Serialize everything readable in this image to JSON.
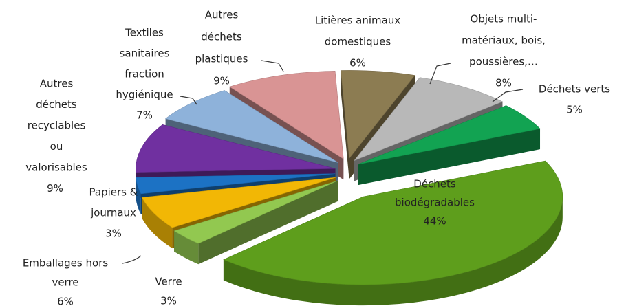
{
  "chart_data": {
    "type": "pie3d",
    "categories": [
      [
        "Déchets",
        "biodégradables"
      ],
      [
        "Verre"
      ],
      [
        "Emballages hors",
        "verre"
      ],
      [
        "Papiers &",
        "journaux"
      ],
      [
        "Autres",
        "déchets",
        "recyclables",
        "ou",
        "valorisables"
      ],
      [
        "Textiles",
        "sanitaires",
        "fraction",
        "hygiénique"
      ],
      [
        "Autres",
        "déchets",
        "plastiques"
      ],
      [
        "Litières animaux",
        "domestiques"
      ],
      [
        "Objets multi-",
        "matériaux, bois,",
        "poussières,…"
      ],
      [
        "Déchets verts"
      ]
    ],
    "values": [
      44,
      3,
      6,
      3,
      9,
      7,
      9,
      6,
      8,
      5
    ],
    "value_labels": [
      "44%",
      "3%",
      "6%",
      "3%",
      "9%",
      "7%",
      "9%",
      "6%",
      "8%",
      "5%"
    ],
    "colors": [
      "#5e9e1c",
      "#92c850",
      "#f2b705",
      "#1c72c4",
      "#7030a0",
      "#8eb2da",
      "#d99494",
      "#8c7c52",
      "#b8b8b8",
      "#12a352"
    ]
  }
}
